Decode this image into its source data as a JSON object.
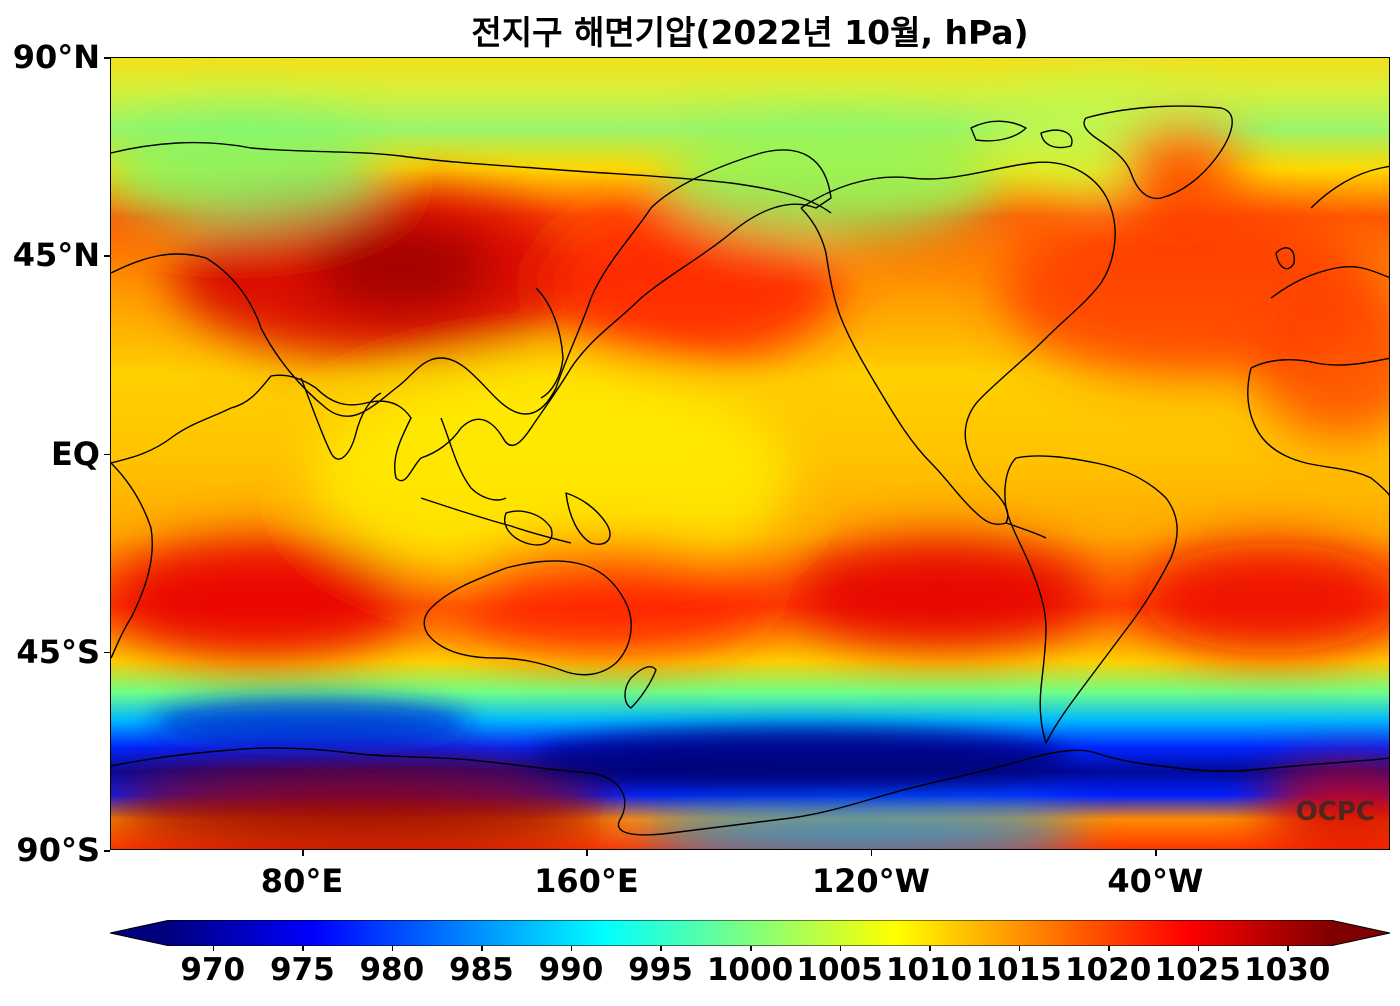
{
  "title": "전지구 해면기압(2022년 10월, hPa)",
  "watermark": "OCPC",
  "y_axis": {
    "ticks": [
      {
        "label": "90°N",
        "lat": 90
      },
      {
        "label": "45°N",
        "lat": 45
      },
      {
        "label": "EQ",
        "lat": 0
      },
      {
        "label": "45°S",
        "lat": -45
      },
      {
        "label": "90°S",
        "lat": -90
      }
    ]
  },
  "x_axis": {
    "lon_range": [
      26,
      386
    ],
    "ticks": [
      {
        "label": "80°E",
        "lon": 80
      },
      {
        "label": "160°E",
        "lon": 160
      },
      {
        "label": "120°W",
        "lon": 240
      },
      {
        "label": "40°W",
        "lon": 320
      }
    ]
  },
  "colorbar": {
    "min": 967.5,
    "max": 1032.5,
    "extend": "both",
    "colormap": "jet",
    "ticks": [
      {
        "label": "970",
        "value": 970
      },
      {
        "label": "975",
        "value": 975
      },
      {
        "label": "980",
        "value": 980
      },
      {
        "label": "985",
        "value": 985
      },
      {
        "label": "990",
        "value": 990
      },
      {
        "label": "995",
        "value": 995
      },
      {
        "label": "1000",
        "value": 1000
      },
      {
        "label": "1005",
        "value": 1005
      },
      {
        "label": "1010",
        "value": 1010
      },
      {
        "label": "1015",
        "value": 1015
      },
      {
        "label": "1020",
        "value": 1020
      },
      {
        "label": "1025",
        "value": 1025
      },
      {
        "label": "1030",
        "value": 1030
      }
    ]
  },
  "colors": {
    "jet_stops": [
      "#00007f",
      "#0000ff",
      "#007fff",
      "#00ffff",
      "#7fff7f",
      "#ffff00",
      "#ff7f00",
      "#ff0000",
      "#7f0000"
    ],
    "coastline": "#000000"
  }
}
